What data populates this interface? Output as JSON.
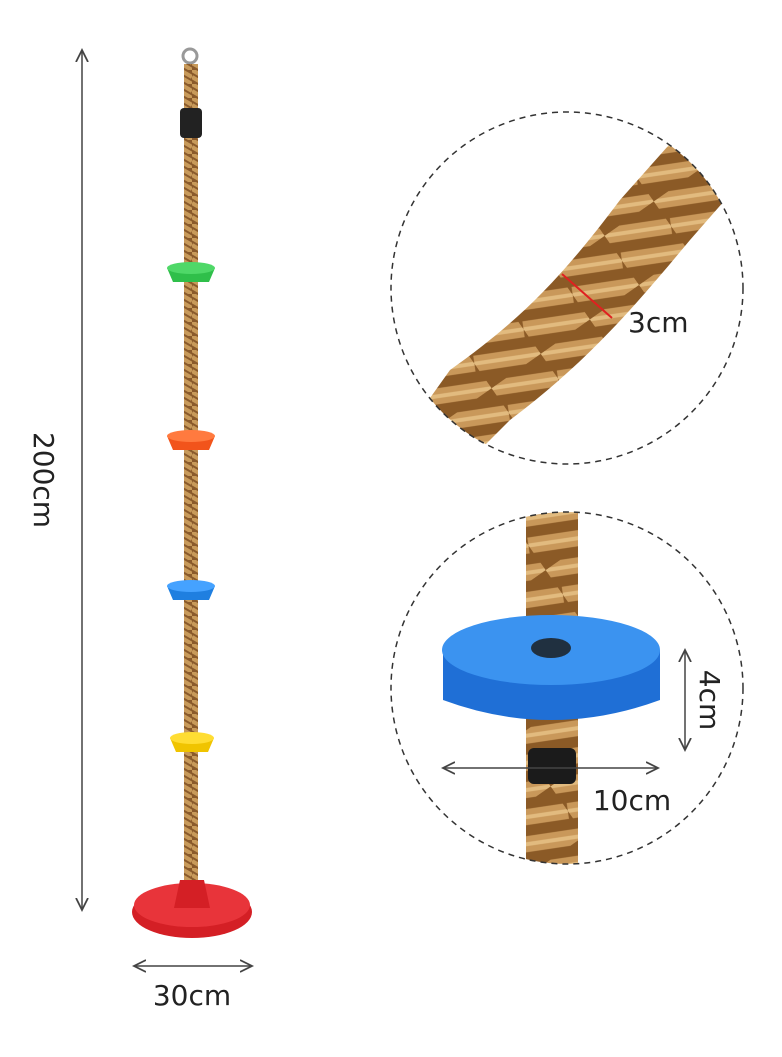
{
  "dimensions": {
    "height": "200cm",
    "seat_width": "30cm",
    "rope_diameter": "3cm",
    "foothold_height": "4cm",
    "foothold_width": "10cm"
  }
}
